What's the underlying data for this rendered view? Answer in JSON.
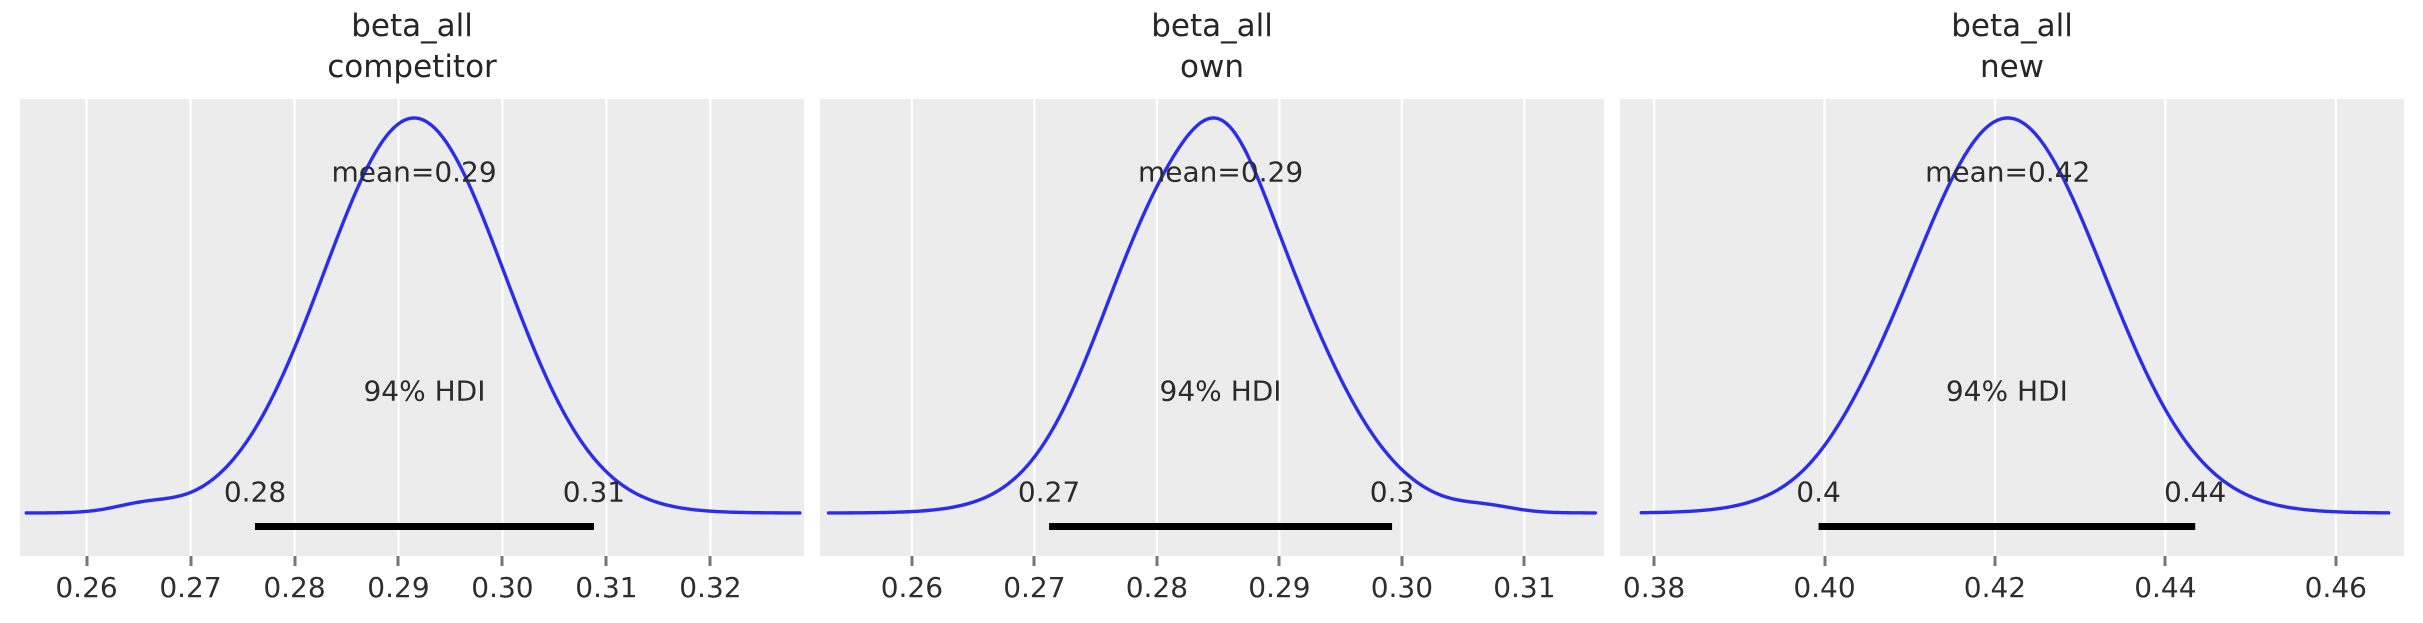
{
  "figure": {
    "kind": "arviz-posterior-plot",
    "n_panels": 3
  },
  "style": {
    "axes_background": "#ececec",
    "grid_color": "#ffffff",
    "curve_color": "#2a2eec",
    "hdi_bar_color": "#000000",
    "annotation_color": "#2b2b2b",
    "title_color": "#262626",
    "tick_label_color": "#2e2e2e",
    "tick_mark_color": "#767676"
  },
  "chart_data": [
    {
      "type": "kde",
      "title_line1": "beta_all",
      "title_line2": "competitor",
      "xlim": [
        0.2536,
        0.329
      ],
      "curve_range": [
        0.2542,
        0.3286
      ],
      "x_ticks": [
        0.26,
        0.27,
        0.28,
        0.29,
        0.3,
        0.31,
        0.32
      ],
      "x_tick_labels": [
        "0.26",
        "0.27",
        "0.28",
        "0.29",
        "0.30",
        "0.31",
        "0.32"
      ],
      "mean_value": 0.2915,
      "hdi": [
        0.2762,
        0.3088
      ],
      "hdi_probability": "94%",
      "kde_components": [
        {
          "mu": 0.2915,
          "sigma": 0.0087,
          "weight": 1.0
        },
        {
          "mu": 0.2655,
          "sigma": 0.0028,
          "weight": 0.018
        }
      ],
      "labels": {
        "mean": "mean=0.29",
        "hdi": "94% HDI",
        "hdi_low": "0.28",
        "hdi_high": "0.31"
      }
    },
    {
      "type": "kde",
      "title_line1": "beta_all",
      "title_line2": "own",
      "xlim": [
        0.2525,
        0.3165
      ],
      "curve_range": [
        0.2532,
        0.3158
      ],
      "x_ticks": [
        0.26,
        0.27,
        0.28,
        0.29,
        0.3,
        0.31
      ],
      "x_tick_labels": [
        "0.26",
        "0.27",
        "0.28",
        "0.29",
        "0.30",
        "0.31"
      ],
      "mean_value": 0.2852,
      "hdi": [
        0.2712,
        0.2992
      ],
      "hdi_probability": "94%",
      "kde_components": [
        {
          "mu": 0.2848,
          "sigma": 0.0075,
          "weight": 0.85
        },
        {
          "mu": 0.2786,
          "sigma": 0.0045,
          "weight": 0.12
        },
        {
          "mu": 0.2856,
          "sigma": 0.0028,
          "weight": 0.1
        },
        {
          "mu": 0.307,
          "sigma": 0.0022,
          "weight": 0.012
        }
      ],
      "labels": {
        "mean": "mean=0.29",
        "hdi": "94% HDI",
        "hdi_low": "0.27",
        "hdi_high": "0.3"
      }
    },
    {
      "type": "kde",
      "title_line1": "beta_all",
      "title_line2": "new",
      "xlim": [
        0.376,
        0.468
      ],
      "curve_range": [
        0.3785,
        0.4662
      ],
      "x_ticks": [
        0.38,
        0.4,
        0.42,
        0.44,
        0.46
      ],
      "x_tick_labels": [
        "0.38",
        "0.40",
        "0.42",
        "0.44",
        "0.46"
      ],
      "mean_value": 0.4215,
      "hdi": [
        0.3993,
        0.4435
      ],
      "hdi_probability": "94%",
      "kde_components": [
        {
          "mu": 0.4215,
          "sigma": 0.0113,
          "weight": 1.0
        },
        {
          "mu": 0.404,
          "sigma": 0.004,
          "weight": 0.012
        }
      ],
      "labels": {
        "mean": "mean=0.42",
        "hdi": "94% HDI",
        "hdi_low": "0.4",
        "hdi_high": "0.44"
      }
    }
  ]
}
